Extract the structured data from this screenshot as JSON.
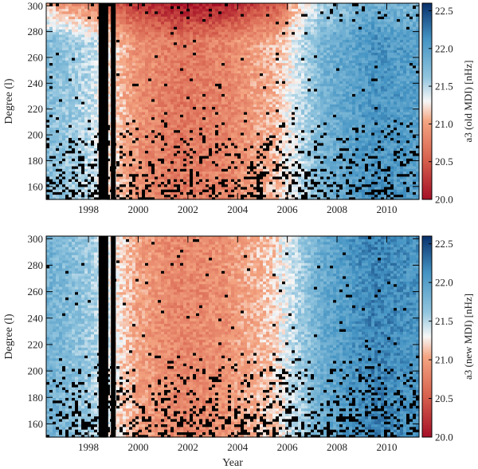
{
  "chart_data": [
    {
      "type": "heatmap",
      "panel": "top",
      "xlabel": "",
      "ylabel": "Degree (l)",
      "xlim": [
        1996.3,
        2011.3
      ],
      "ylim": [
        150,
        302
      ],
      "x_ticks": [
        "1998",
        "2000",
        "2002",
        "2004",
        "2006",
        "2008",
        "2010"
      ],
      "y_ticks": [
        "160",
        "180",
        "200",
        "220",
        "240",
        "260",
        "280",
        "300"
      ],
      "colorbar": {
        "label": "a3 (old MDI) [nHz]",
        "range": [
          20.0,
          22.6
        ],
        "ticks": [
          "20.0",
          "20.5",
          "21.0",
          "21.5",
          "22.0",
          "22.5"
        ],
        "colormap": "red-white-blue (RdBu)",
        "low_color": "#a50f26",
        "mid_color": "#f7f7f7",
        "high_color": "#08306b"
      },
      "value_trend": [
        {
          "x": 1996.5,
          "a3": 21.7
        },
        {
          "x": 1998.0,
          "a3": 21.5
        },
        {
          "x": 2000.0,
          "a3": 20.9
        },
        {
          "x": 2001.7,
          "a3": 20.7
        },
        {
          "x": 2003.5,
          "a3": 20.8
        },
        {
          "x": 2005.5,
          "a3": 21.1
        },
        {
          "x": 2007.5,
          "a3": 21.8
        },
        {
          "x": 2009.5,
          "a3": 22.1
        },
        {
          "x": 2011.0,
          "a3": 22.0
        }
      ],
      "data_gap_years": [
        1998.6,
        1999.0
      ],
      "notes": "high-degree rows near l=280-300 redder (lower a3) in old MDI"
    },
    {
      "type": "heatmap",
      "panel": "bottom",
      "xlabel": "Year",
      "ylabel": "Degree (l)",
      "xlim": [
        1996.3,
        2011.3
      ],
      "ylim": [
        150,
        302
      ],
      "x_ticks": [
        "1998",
        "2000",
        "2002",
        "2004",
        "2006",
        "2008",
        "2010"
      ],
      "y_ticks": [
        "160",
        "180",
        "200",
        "220",
        "240",
        "260",
        "280",
        "300"
      ],
      "colorbar": {
        "label": "a3 (new MDI) [nHz]",
        "range": [
          20.0,
          22.6
        ],
        "ticks": [
          "20.0",
          "20.5",
          "21.0",
          "21.5",
          "22.0",
          "22.5"
        ],
        "colormap": "red-white-blue (RdBu)",
        "low_color": "#a50f26",
        "mid_color": "#f7f7f7",
        "high_color": "#08306b"
      },
      "value_trend": [
        {
          "x": 1996.5,
          "a3": 21.8
        },
        {
          "x": 1998.0,
          "a3": 21.6
        },
        {
          "x": 2000.0,
          "a3": 21.0
        },
        {
          "x": 2001.7,
          "a3": 20.8
        },
        {
          "x": 2003.5,
          "a3": 20.9
        },
        {
          "x": 2005.5,
          "a3": 21.2
        },
        {
          "x": 2007.5,
          "a3": 21.9
        },
        {
          "x": 2009.5,
          "a3": 22.2
        },
        {
          "x": 2011.0,
          "a3": 22.1
        }
      ],
      "data_gap_years": [
        1998.6,
        1999.0
      ]
    }
  ]
}
